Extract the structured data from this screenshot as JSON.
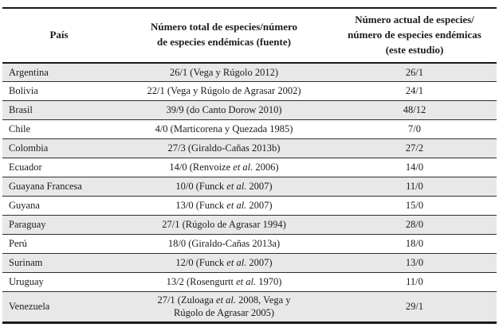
{
  "table": {
    "headers": [
      {
        "label": "País"
      },
      {
        "label": "Número total de especies/número\nde especies endémicas (fuente)"
      },
      {
        "label": "Número actual de especies/\nnúmero de especies endémicas\n(este estudio)"
      }
    ],
    "rows": [
      {
        "country": "Argentina",
        "source": [
          {
            "t": "26/1 (Vega y Rúgolo 2012)"
          }
        ],
        "current": "26/1"
      },
      {
        "country": "Bolivia",
        "source": [
          {
            "t": "22/1 (Vega y Rúgolo de Agrasar 2002)"
          }
        ],
        "current": "24/1"
      },
      {
        "country": "Brasil",
        "source": [
          {
            "t": "39/9 (do Canto Dorow 2010)"
          }
        ],
        "current": "48/12"
      },
      {
        "country": "Chile",
        "source": [
          {
            "t": "4/0 (Marticorena y Quezada 1985)"
          }
        ],
        "current": "7/0"
      },
      {
        "country": "Colombia",
        "source": [
          {
            "t": "27/3 (Giraldo-Cañas 2013b)"
          }
        ],
        "current": "27/2"
      },
      {
        "country": "Ecuador",
        "source": [
          {
            "t": "14/0 (Renvoize "
          },
          {
            "t": "et al.",
            "i": true
          },
          {
            "t": " 2006)"
          }
        ],
        "current": "14/0"
      },
      {
        "country": "Guayana Francesa",
        "source": [
          {
            "t": "10/0 (Funck "
          },
          {
            "t": "et al.",
            "i": true
          },
          {
            "t": " 2007)"
          }
        ],
        "current": "11/0"
      },
      {
        "country": "Guyana",
        "source": [
          {
            "t": "13/0 (Funck "
          },
          {
            "t": "et al.",
            "i": true
          },
          {
            "t": " 2007)"
          }
        ],
        "current": "15/0"
      },
      {
        "country": "Paraguay",
        "source": [
          {
            "t": "27/1 (Rúgolo de Agrasar 1994)"
          }
        ],
        "current": "28/0"
      },
      {
        "country": "Perú",
        "source": [
          {
            "t": "18/0 (Giraldo-Cañas 2013a)"
          }
        ],
        "current": "18/0"
      },
      {
        "country": "Surinam",
        "source": [
          {
            "t": "12/0 (Funck "
          },
          {
            "t": "et al.",
            "i": true
          },
          {
            "t": " 2007)"
          }
        ],
        "current": "13/0"
      },
      {
        "country": "Uruguay",
        "source": [
          {
            "t": "13/2 (Rosengurtt "
          },
          {
            "t": "et al.",
            "i": true
          },
          {
            "t": " 1970)"
          }
        ],
        "current": "11/0"
      },
      {
        "country": "Venezuela",
        "source": [
          {
            "t": "27/1 (Zuloaga "
          },
          {
            "t": "et al.",
            "i": true
          },
          {
            "t": " 2008, Vega y"
          },
          {
            "br": true
          },
          {
            "t": "Rúgolo de Agrasar 2005)"
          }
        ],
        "current": "29/1"
      }
    ]
  },
  "colors": {
    "background": "#ffffff",
    "text": "#1b1b1b",
    "row_shade": "#e8e8e8",
    "rule_thin": "#2e2e2e",
    "rule_thick": "#1a1a1a"
  }
}
